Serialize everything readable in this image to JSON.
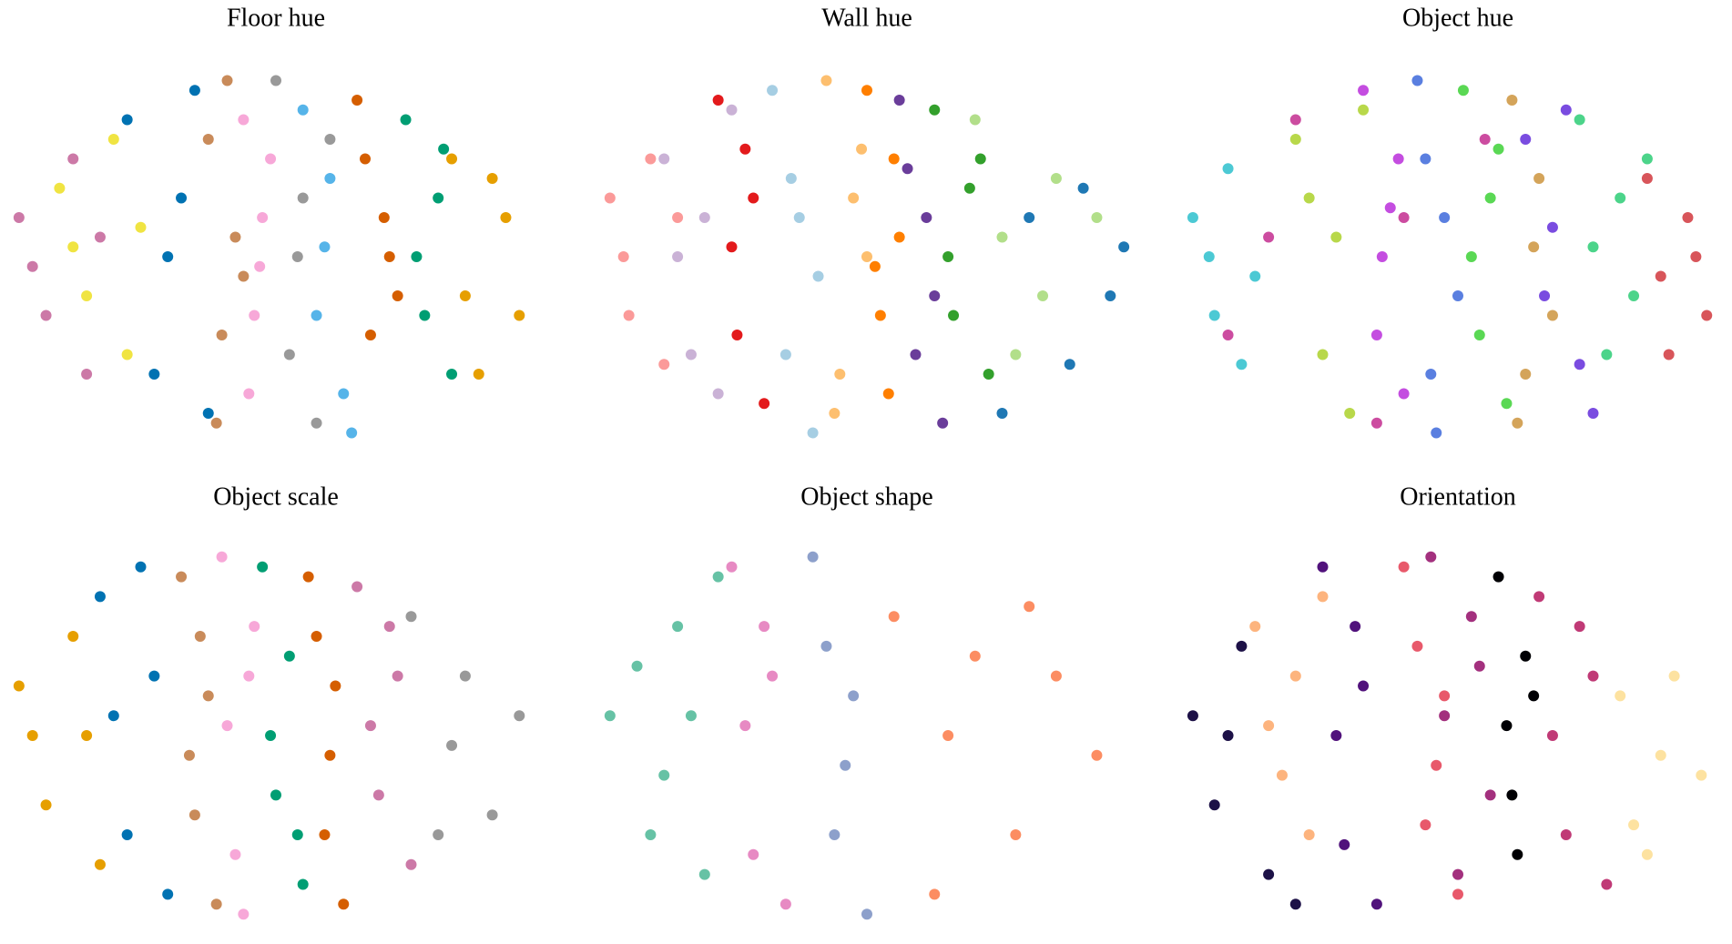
{
  "chart_data": [
    {
      "type": "scatter",
      "title": "Floor hue",
      "xlim": [
        -1,
        1
      ],
      "ylim": [
        -1,
        1
      ],
      "series": [
        {
          "color": "#cc79a7",
          "x": [
            -0.95,
            -0.85,
            -0.75,
            -0.7,
            -0.9,
            -0.65
          ],
          "values": [
            0.2,
            -0.3,
            0.5,
            -0.6,
            -0.05,
            0.1
          ]
        },
        {
          "color": "#f0e442",
          "x": [
            -0.8,
            -0.7,
            -0.6,
            -0.55,
            -0.75,
            -0.5
          ],
          "values": [
            0.35,
            -0.2,
            0.6,
            -0.5,
            0.05,
            0.15
          ]
        },
        {
          "color": "#0072b2",
          "x": [
            -0.55,
            -0.45,
            -0.35,
            -0.25,
            -0.4,
            -0.3
          ],
          "values": [
            0.7,
            -0.6,
            0.3,
            -0.8,
            0.0,
            0.85
          ]
        },
        {
          "color": "#c98b5a",
          "x": [
            -0.25,
            -0.2,
            -0.15,
            -0.18,
            -0.22,
            -0.12
          ],
          "values": [
            0.6,
            -0.4,
            0.1,
            0.9,
            -0.85,
            -0.1
          ]
        },
        {
          "color": "#f7a8d8",
          "x": [
            -0.12,
            -0.08,
            -0.05,
            -0.1,
            -0.02,
            -0.06
          ],
          "values": [
            0.7,
            -0.3,
            0.2,
            -0.7,
            0.5,
            -0.05
          ]
        },
        {
          "color": "#999999",
          "x": [
            0.0,
            0.05,
            0.1,
            0.15,
            0.08,
            0.2
          ],
          "values": [
            0.9,
            -0.5,
            0.3,
            -0.85,
            0.0,
            0.6
          ]
        },
        {
          "color": "#56b4e9",
          "x": [
            0.1,
            0.15,
            0.2,
            0.25,
            0.18,
            0.28
          ],
          "values": [
            0.75,
            -0.3,
            0.4,
            -0.7,
            0.05,
            -0.9
          ]
        },
        {
          "color": "#d55e00",
          "x": [
            0.3,
            0.35,
            0.4,
            0.45,
            0.33,
            0.42
          ],
          "values": [
            0.8,
            -0.4,
            0.2,
            -0.2,
            0.5,
            0.0
          ]
        },
        {
          "color": "#009e73",
          "x": [
            0.48,
            0.55,
            0.6,
            0.65,
            0.52,
            0.62
          ],
          "values": [
            0.7,
            -0.3,
            0.3,
            -0.6,
            0.0,
            0.55
          ]
        },
        {
          "color": "#e69f00",
          "x": [
            0.65,
            0.75,
            0.85,
            0.9,
            0.7,
            0.8
          ],
          "values": [
            0.5,
            -0.6,
            0.2,
            -0.3,
            -0.2,
            0.4
          ]
        }
      ]
    },
    {
      "type": "scatter",
      "title": "Wall hue",
      "xlim": [
        -1,
        1
      ],
      "ylim": [
        -1,
        1
      ],
      "series": [
        {
          "color": "#fb9a99",
          "x": [
            -0.95,
            -0.88,
            -0.8,
            -0.75,
            -0.9,
            -0.7
          ],
          "values": [
            0.3,
            -0.3,
            0.5,
            -0.55,
            0.0,
            0.2
          ]
        },
        {
          "color": "#cab2d6",
          "x": [
            -0.75,
            -0.65,
            -0.6,
            -0.55,
            -0.7,
            -0.5
          ],
          "values": [
            0.5,
            -0.5,
            0.2,
            -0.7,
            0.0,
            0.75
          ]
        },
        {
          "color": "#e31a1c",
          "x": [
            -0.55,
            -0.48,
            -0.42,
            -0.38,
            -0.5,
            -0.45
          ],
          "values": [
            0.8,
            -0.4,
            0.3,
            -0.75,
            0.05,
            0.55
          ]
        },
        {
          "color": "#a6cee3",
          "x": [
            -0.35,
            -0.3,
            -0.25,
            -0.2,
            -0.28,
            -0.18
          ],
          "values": [
            0.85,
            -0.5,
            0.2,
            -0.9,
            0.4,
            -0.1
          ]
        },
        {
          "color": "#fdbf6f",
          "x": [
            -0.15,
            -0.1,
            -0.05,
            -0.12,
            0.0,
            -0.02
          ],
          "values": [
            0.9,
            -0.6,
            0.3,
            -0.8,
            0.0,
            0.55
          ]
        },
        {
          "color": "#ff7f00",
          "x": [
            0.0,
            0.05,
            0.1,
            0.08,
            0.12,
            0.03
          ],
          "values": [
            0.85,
            -0.3,
            0.5,
            -0.7,
            0.1,
            -0.05
          ]
        },
        {
          "color": "#6a3d9a",
          "x": [
            0.12,
            0.18,
            0.22,
            0.28,
            0.15,
            0.25
          ],
          "values": [
            0.8,
            -0.5,
            0.2,
            -0.85,
            0.45,
            -0.2
          ]
        },
        {
          "color": "#33a02c",
          "x": [
            0.25,
            0.32,
            0.38,
            0.45,
            0.3,
            0.42
          ],
          "values": [
            0.75,
            -0.3,
            0.35,
            -0.6,
            0.0,
            0.5
          ]
        },
        {
          "color": "#b2df8a",
          "x": [
            0.4,
            0.55,
            0.7,
            0.85,
            0.5,
            0.65
          ],
          "values": [
            0.7,
            -0.5,
            0.4,
            0.2,
            0.1,
            -0.2
          ]
        },
        {
          "color": "#1f78b4",
          "x": [
            0.5,
            0.6,
            0.75,
            0.9,
            0.8,
            0.95
          ],
          "values": [
            -0.8,
            0.2,
            -0.55,
            -0.2,
            0.35,
            0.05
          ]
        }
      ]
    },
    {
      "type": "scatter",
      "title": "Object hue",
      "xlim": [
        -1,
        1
      ],
      "ylim": [
        -1,
        1
      ],
      "series": [
        {
          "color": "#4cc9d4",
          "x": [
            -0.98,
            -0.9,
            -0.85,
            -0.8,
            -0.92,
            -0.75
          ],
          "values": [
            0.2,
            -0.3,
            0.45,
            -0.55,
            0.0,
            -0.1
          ]
        },
        {
          "color": "#cc4ca0",
          "x": [
            -0.85,
            -0.6,
            -0.3,
            0.1,
            -0.7,
            -0.2
          ],
          "values": [
            -0.4,
            0.7,
            -0.85,
            0.6,
            0.1,
            0.2
          ]
        },
        {
          "color": "#b8d84a",
          "x": [
            -0.6,
            -0.5,
            -0.45,
            -0.4,
            -0.55,
            -0.35
          ],
          "values": [
            0.6,
            -0.5,
            0.1,
            -0.8,
            0.3,
            0.75
          ]
        },
        {
          "color": "#c44de0",
          "x": [
            -0.35,
            -0.3,
            -0.25,
            -0.2,
            -0.28,
            -0.22
          ],
          "values": [
            0.85,
            -0.4,
            0.25,
            -0.7,
            0.0,
            0.5
          ]
        },
        {
          "color": "#5a7fe0",
          "x": [
            -0.15,
            -0.1,
            -0.05,
            -0.08,
            -0.12,
            0.0
          ],
          "values": [
            0.9,
            -0.6,
            0.2,
            -0.9,
            0.5,
            -0.2
          ]
        },
        {
          "color": "#5ad854",
          "x": [
            0.02,
            0.08,
            0.12,
            0.18,
            0.05,
            0.15
          ],
          "values": [
            0.85,
            -0.4,
            0.3,
            -0.75,
            0.0,
            0.55
          ]
        },
        {
          "color": "#d4a45a",
          "x": [
            0.2,
            0.25,
            0.3,
            0.35,
            0.28,
            0.22
          ],
          "values": [
            0.8,
            -0.6,
            0.4,
            -0.3,
            0.05,
            -0.85
          ]
        },
        {
          "color": "#7a4ce0",
          "x": [
            0.25,
            0.32,
            0.4,
            0.45,
            0.35,
            0.5
          ],
          "values": [
            0.6,
            -0.2,
            0.75,
            -0.55,
            0.15,
            -0.8
          ]
        },
        {
          "color": "#4cd48a",
          "x": [
            0.45,
            0.55,
            0.6,
            0.65,
            0.5,
            0.7
          ],
          "values": [
            0.7,
            -0.5,
            0.3,
            -0.2,
            0.05,
            0.5
          ]
        },
        {
          "color": "#d8555a",
          "x": [
            0.7,
            0.78,
            0.85,
            0.92,
            0.75,
            0.88
          ],
          "values": [
            0.4,
            -0.5,
            0.2,
            -0.3,
            -0.1,
            0.0
          ]
        }
      ]
    },
    {
      "type": "scatter",
      "title": "Object scale",
      "xlim": [
        -1,
        1
      ],
      "ylim": [
        -1,
        1
      ],
      "series": [
        {
          "color": "#e69f00",
          "x": [
            -0.95,
            -0.85,
            -0.75,
            -0.65,
            -0.9,
            -0.7
          ],
          "values": [
            0.25,
            -0.35,
            0.5,
            -0.65,
            0.0,
            0.0
          ]
        },
        {
          "color": "#0072b2",
          "x": [
            -0.65,
            -0.55,
            -0.45,
            -0.4,
            -0.6,
            -0.5
          ],
          "values": [
            0.7,
            -0.5,
            0.3,
            -0.8,
            0.1,
            0.85
          ]
        },
        {
          "color": "#c98b5a",
          "x": [
            -0.35,
            -0.3,
            -0.25,
            -0.22,
            -0.28,
            -0.32
          ],
          "values": [
            0.8,
            -0.4,
            0.2,
            -0.85,
            0.5,
            -0.1
          ]
        },
        {
          "color": "#f7a8d8",
          "x": [
            -0.2,
            -0.15,
            -0.1,
            -0.12,
            -0.18,
            -0.08
          ],
          "values": [
            0.9,
            -0.6,
            0.3,
            -0.9,
            0.05,
            0.55
          ]
        },
        {
          "color": "#009e73",
          "x": [
            -0.05,
            0.0,
            0.05,
            0.1,
            -0.02,
            0.08
          ],
          "values": [
            0.85,
            -0.3,
            0.4,
            -0.75,
            0.0,
            -0.5
          ]
        },
        {
          "color": "#d55e00",
          "x": [
            0.12,
            0.18,
            0.22,
            0.25,
            0.15,
            0.2
          ],
          "values": [
            0.8,
            -0.5,
            0.25,
            -0.85,
            0.5,
            -0.1
          ]
        },
        {
          "color": "#cc79a7",
          "x": [
            0.3,
            0.38,
            0.45,
            0.5,
            0.35,
            0.42
          ],
          "values": [
            0.75,
            -0.3,
            0.3,
            -0.65,
            0.05,
            0.55
          ]
        },
        {
          "color": "#999999",
          "x": [
            0.5,
            0.6,
            0.7,
            0.8,
            0.9,
            0.65
          ],
          "values": [
            0.6,
            -0.5,
            0.3,
            -0.4,
            0.1,
            -0.05
          ]
        }
      ]
    },
    {
      "type": "scatter",
      "title": "Object shape",
      "xlim": [
        -1,
        1
      ],
      "ylim": [
        -1,
        1
      ],
      "series": [
        {
          "color": "#66c2a5",
          "x": [
            -0.95,
            -0.8,
            -0.7,
            -0.6,
            -0.85,
            -0.65,
            -0.75,
            -0.55
          ],
          "values": [
            0.1,
            -0.5,
            0.55,
            -0.7,
            0.35,
            0.1,
            -0.2,
            0.8
          ]
        },
        {
          "color": "#e78ac3",
          "x": [
            -0.5,
            -0.42,
            -0.35,
            -0.3,
            -0.45,
            -0.38
          ],
          "values": [
            0.85,
            -0.6,
            0.3,
            -0.85,
            0.05,
            0.55
          ]
        },
        {
          "color": "#8da0cb",
          "x": [
            -0.2,
            -0.12,
            -0.05,
            0.0,
            -0.15,
            -0.08
          ],
          "values": [
            0.9,
            -0.5,
            0.2,
            -0.9,
            0.45,
            -0.15
          ]
        },
        {
          "color": "#fc8d62",
          "x": [
            0.1,
            0.25,
            0.4,
            0.55,
            0.7,
            0.85,
            0.3,
            0.6
          ],
          "values": [
            0.6,
            -0.8,
            0.4,
            -0.5,
            0.3,
            -0.1,
            0.0,
            0.65
          ]
        }
      ]
    },
    {
      "type": "scatter",
      "title": "Orientation",
      "xlim": [
        -1,
        1
      ],
      "ylim": [
        -1,
        1
      ],
      "series": [
        {
          "color": "#1d1147",
          "x": [
            -0.98,
            -0.9,
            -0.8,
            -0.7,
            -0.85,
            -0.6
          ],
          "values": [
            0.1,
            -0.35,
            0.45,
            -0.7,
            0.0,
            -0.85
          ]
        },
        {
          "color": "#fdb47e",
          "x": [
            -0.75,
            -0.65,
            -0.6,
            -0.55,
            -0.7,
            -0.5
          ],
          "values": [
            0.55,
            -0.2,
            0.3,
            -0.5,
            0.05,
            0.7
          ]
        },
        {
          "color": "#51127c",
          "x": [
            -0.5,
            -0.42,
            -0.35,
            -0.3,
            -0.45,
            -0.38
          ],
          "values": [
            0.85,
            -0.55,
            0.25,
            -0.85,
            0.0,
            0.55
          ]
        },
        {
          "color": "#e8596b",
          "x": [
            -0.2,
            -0.12,
            -0.05,
            0.0,
            -0.15,
            -0.08
          ],
          "values": [
            0.85,
            -0.45,
            0.2,
            -0.8,
            0.45,
            -0.15
          ]
        },
        {
          "color": "#a3307e",
          "x": [
            -0.1,
            0.0,
            0.08,
            0.12,
            -0.05,
            0.05
          ],
          "values": [
            0.9,
            -0.7,
            0.35,
            -0.3,
            0.1,
            0.6
          ]
        },
        {
          "color": "#000004",
          "x": [
            0.15,
            0.2,
            0.25,
            0.22,
            0.18,
            0.28
          ],
          "values": [
            0.8,
            -0.3,
            0.4,
            -0.6,
            0.05,
            0.2
          ]
        },
        {
          "color": "#c03a76",
          "x": [
            0.3,
            0.4,
            0.5,
            0.55,
            0.35,
            0.45
          ],
          "values": [
            0.7,
            -0.5,
            0.3,
            -0.75,
            0.0,
            0.55
          ]
        },
        {
          "color": "#fde2a0",
          "x": [
            0.6,
            0.7,
            0.8,
            0.9,
            0.75,
            0.65
          ],
          "values": [
            0.2,
            -0.6,
            0.3,
            -0.2,
            -0.1,
            -0.45
          ]
        }
      ]
    }
  ]
}
